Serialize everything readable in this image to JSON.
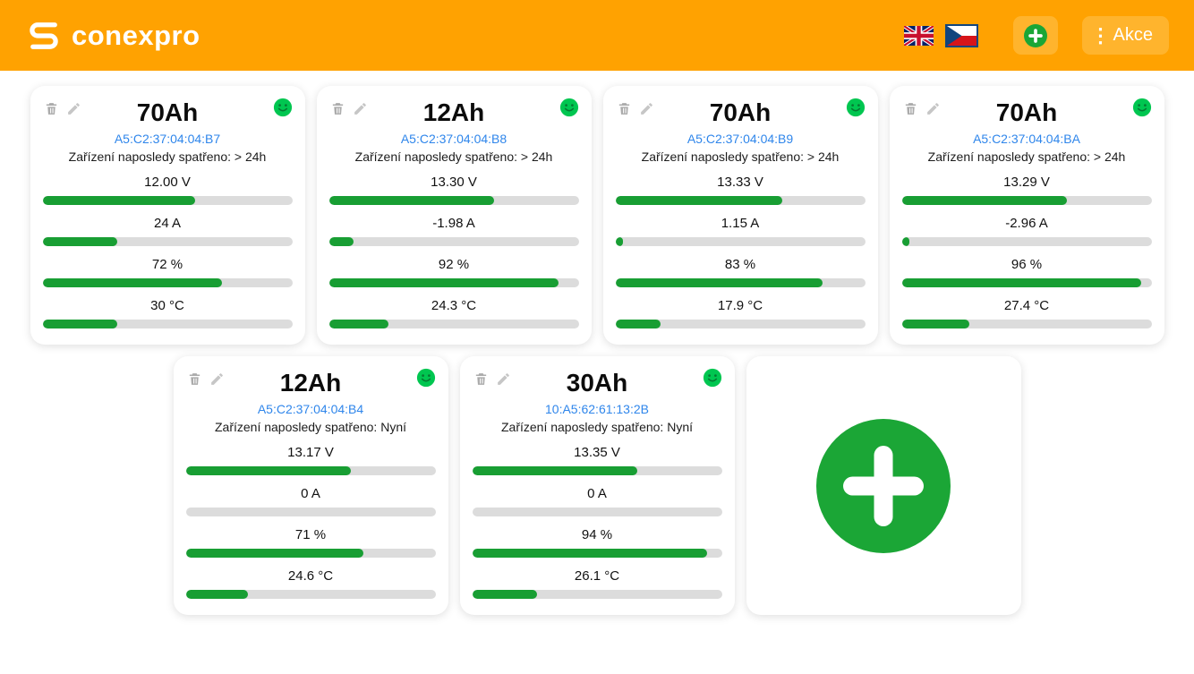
{
  "header": {
    "brand": "conexpro",
    "actions_button": "Akce"
  },
  "icons": {
    "header_add": "plus-circle-icon",
    "header_actions": "kebab-menu-icon",
    "language_english": "uk-flag-icon",
    "language_czech": "czech-flag-icon",
    "card_delete": "trash-icon",
    "card_edit": "pencil-icon",
    "card_status": "smiley-icon",
    "add_device": "plus-circle-icon"
  },
  "colors": {
    "header_orange": "#FFA201",
    "header_button_orange": "#FFB42D",
    "bar_green": "#189E33",
    "smiley_green": "#00C650",
    "mac_blue": "#2F86EB",
    "bar_track": "#DCDCDC"
  },
  "cards": [
    {
      "title": "70Ah",
      "mac": "A5:C2:37:04:04:B7",
      "last_seen": "Zařízení naposledy spatřeno: > 24h",
      "metrics": [
        {
          "label": "12.00 V",
          "percent": 61
        },
        {
          "label": "24 A",
          "percent": 30
        },
        {
          "label": "72 %",
          "percent": 72
        },
        {
          "label": "30 °C",
          "percent": 30
        }
      ]
    },
    {
      "title": "12Ah",
      "mac": "A5:C2:37:04:04:B8",
      "last_seen": "Zařízení naposledy spatřeno: > 24h",
      "metrics": [
        {
          "label": "13.30 V",
          "percent": 66
        },
        {
          "label": "-1.98 A",
          "percent": 10
        },
        {
          "label": "92 %",
          "percent": 92
        },
        {
          "label": "24.3 °C",
          "percent": 24
        }
      ]
    },
    {
      "title": "70Ah",
      "mac": "A5:C2:37:04:04:B9",
      "last_seen": "Zařízení naposledy spatřeno: > 24h",
      "metrics": [
        {
          "label": "13.33 V",
          "percent": 67
        },
        {
          "label": "1.15 A",
          "percent": 3
        },
        {
          "label": "83 %",
          "percent": 83
        },
        {
          "label": "17.9 °C",
          "percent": 18
        }
      ]
    },
    {
      "title": "70Ah",
      "mac": "A5:C2:37:04:04:BA",
      "last_seen": "Zařízení naposledy spatřeno: > 24h",
      "metrics": [
        {
          "label": "13.29 V",
          "percent": 66
        },
        {
          "label": "-2.96 A",
          "percent": 3
        },
        {
          "label": "96 %",
          "percent": 96
        },
        {
          "label": "27.4 °C",
          "percent": 27
        }
      ]
    },
    {
      "title": "12Ah",
      "mac": "A5:C2:37:04:04:B4",
      "last_seen": "Zařízení naposledy spatřeno: Nyní",
      "metrics": [
        {
          "label": "13.17 V",
          "percent": 66
        },
        {
          "label": "0 A",
          "percent": 0
        },
        {
          "label": "71 %",
          "percent": 71
        },
        {
          "label": "24.6 °C",
          "percent": 25
        }
      ]
    },
    {
      "title": "30Ah",
      "mac": "10:A5:62:61:13:2B",
      "last_seen": "Zařízení naposledy spatřeno: Nyní",
      "metrics": [
        {
          "label": "13.35 V",
          "percent": 66
        },
        {
          "label": "0 A",
          "percent": 0
        },
        {
          "label": "94 %",
          "percent": 94
        },
        {
          "label": "26.1 °C",
          "percent": 26
        }
      ]
    }
  ]
}
